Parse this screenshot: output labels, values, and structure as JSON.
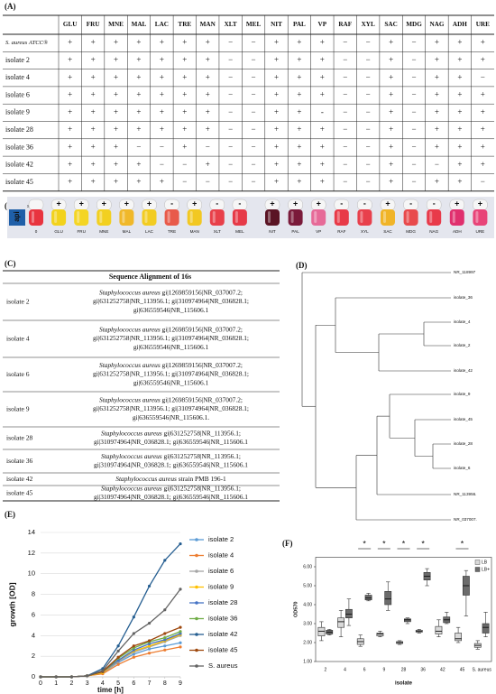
{
  "table_a": {
    "label": "(A)",
    "columns": [
      "GLU",
      "FRU",
      "MNE",
      "MAL",
      "LAC",
      "TRE",
      "MAN",
      "XLT",
      "MEL",
      "NIT",
      "PAL",
      "VP",
      "RAF",
      "XYL",
      "SAC",
      "MDG",
      "NAG",
      "ADH",
      "URE"
    ],
    "rows": [
      {
        "name": "S. aureus ATCC®",
        "cells": [
          "+",
          "+",
          "+",
          "+",
          "+",
          "+",
          "+",
          "−",
          "−",
          "+",
          "+",
          "+",
          "−",
          "−",
          "+",
          "−",
          "+",
          "+",
          "+"
        ]
      },
      {
        "name": "isolate 2",
        "cells": [
          "+",
          "+",
          "+",
          "+",
          "+",
          "+",
          "+",
          "−",
          "−",
          "+",
          "+",
          "+",
          "−",
          "−",
          "+",
          "−",
          "+",
          "+",
          "+"
        ]
      },
      {
        "name": "isolate 4",
        "cells": [
          "+",
          "+",
          "+",
          "+",
          "+",
          "+",
          "+",
          "−",
          "−",
          "+",
          "+",
          "+",
          "−",
          "−",
          "+",
          "−",
          "+",
          "+",
          "−"
        ]
      },
      {
        "name": "isolate 6",
        "cells": [
          "+",
          "+",
          "+",
          "+",
          "+",
          "+",
          "+",
          "−",
          "−",
          "+",
          "+",
          "+",
          "−",
          "−",
          "+",
          "−",
          "+",
          "+",
          "+"
        ]
      },
      {
        "name": "isolate 9",
        "cells": [
          "+",
          "+",
          "+",
          "+",
          "+",
          "+",
          "+",
          "−",
          "−",
          "+",
          "+",
          "-",
          "−",
          "−",
          "+",
          "−",
          "+",
          "+",
          "+"
        ]
      },
      {
        "name": "isolate 28",
        "cells": [
          "+",
          "+",
          "+",
          "+",
          "+",
          "+",
          "+",
          "−",
          "−",
          "+",
          "+",
          "+",
          "−",
          "−",
          "+",
          "−",
          "+",
          "+",
          "+"
        ]
      },
      {
        "name": "isolate 36",
        "cells": [
          "+",
          "+",
          "+",
          "−",
          "−",
          "+",
          "−",
          "−",
          "−",
          "+",
          "+",
          "+",
          "−",
          "−",
          "+",
          "−",
          "+",
          "+",
          "+"
        ]
      },
      {
        "name": "isolate 42",
        "cells": [
          "+",
          "+",
          "+",
          "+",
          "−",
          "−",
          "+",
          "−",
          "−",
          "+",
          "+",
          "+",
          "−",
          "−",
          "+",
          "−",
          "−",
          "+",
          "+"
        ]
      },
      {
        "name": "isolate 45",
        "cells": [
          "+",
          "+",
          "+",
          "+",
          "+",
          "−",
          "−",
          "−",
          "−",
          "+",
          "+",
          "+",
          "−",
          "−",
          "+",
          "−",
          "+",
          "+",
          "−"
        ]
      }
    ]
  },
  "strip": {
    "label": "(B)",
    "brand": "api",
    "brand2": "STAPH",
    "tubes": [
      {
        "label": "0",
        "color": "#e8343f"
      },
      {
        "label": "GLU",
        "sign": "+",
        "color": "#f2d21c"
      },
      {
        "label": "FRU",
        "sign": "+",
        "color": "#f4d524"
      },
      {
        "label": "MNE",
        "sign": "+",
        "color": "#f2d020"
      },
      {
        "label": "MAL",
        "sign": "+",
        "color": "#f0b82a"
      },
      {
        "label": "LAC",
        "sign": "+",
        "color": "#f2cc22"
      },
      {
        "label": "TRE",
        "sign": "-",
        "color": "#e85a4a"
      },
      {
        "label": "MAN",
        "sign": "+",
        "color": "#f2c822"
      },
      {
        "label": "XLT",
        "sign": "-",
        "color": "#e8404a"
      },
      {
        "label": "MEL",
        "sign": "-",
        "color": "#e63a48"
      },
      {
        "label": "NIT",
        "sign": "+",
        "color": "#5a1424"
      },
      {
        "label": "PAL",
        "sign": "+",
        "color": "#7a1a3a"
      },
      {
        "label": "VP",
        "sign": "+",
        "color": "#e66a98"
      },
      {
        "label": "RAF",
        "sign": "-",
        "color": "#e83a48"
      },
      {
        "label": "XYL",
        "sign": "-",
        "color": "#e8404c"
      },
      {
        "label": "SAC",
        "sign": "+",
        "color": "#f0b428"
      },
      {
        "label": "MDG",
        "sign": "-",
        "color": "#e84a4c"
      },
      {
        "label": "NAG",
        "sign": "-",
        "color": "#e83a4a"
      },
      {
        "label": "ADH",
        "sign": "+",
        "color": "#e0306e"
      },
      {
        "label": "URE",
        "sign": "+",
        "color": "#e84478"
      }
    ]
  },
  "alignment": {
    "label": "(C)",
    "title": "Sequence Alignment of 16s",
    "rows": [
      {
        "name": "isolate 2",
        "species": "Staphylococcus aureus",
        "lines": [
          " gi|1269859156|NR_037007.2;",
          "gi|631252758|NR_113956.1;   gi|310974964|NR_036828.1;",
          "gi|636559546|NR_115606.1"
        ]
      },
      {
        "name": "isolate 4",
        "species": "Staphylococcus aureus",
        "lines": [
          " gi|1269859156|NR_037007.2;",
          "gi|631252758|NR_113956.1;   gi|310974964|NR_036828.1;",
          "gi|636559546|NR_115606.1"
        ]
      },
      {
        "name": "isolate 6",
        "species": "Staphylococcus aureus",
        "lines": [
          " gi|1269859156|NR_037007.2;",
          "gi|631252758|NR_113956.1; gi|310974964|NR_036828.1;",
          "gi|636559546|NR_115606.1"
        ]
      },
      {
        "name": "isolate 9",
        "species": "Staphylococcus aureus",
        "lines": [
          " gi|1269859156|NR_037007.2;",
          "gi|631252758|NR_113956.1; gi|310974964|NR_036828.1;",
          "gi|636559546|NR_115606.1."
        ]
      },
      {
        "name": "isolate 28",
        "species": "Staphylococcus aureus",
        "lines": [
          " gi|631252758|NR_113956.1;",
          "gi|310974964|NR_036828.1; gi|636559546|NR_115606.1"
        ]
      },
      {
        "name": "isolate 36",
        "species": "Staphylococcus aureus",
        "lines": [
          " gi|631252758|NR_113956.1;",
          "gi|310974964|NR_036828.1; gi|636559546|NR_115606.1"
        ]
      },
      {
        "name": "isolate 42",
        "species": "Staphylococcus aureus",
        "lines": [
          " strain PMB 196-1"
        ]
      },
      {
        "name": "isolate 45",
        "species": "Staphylococcus aureus",
        "lines": [
          " gi|631252758|NR_113956.1;",
          "gi|310974964|NR_036828.1; gi|636559546|NR_115606.1"
        ]
      }
    ]
  },
  "dendrogram": {
    "label": "(D)",
    "leaves": [
      "NR_118997",
      "isolate_36",
      "isolate_4",
      "isolate_2",
      "isolate_42",
      "isolate_9",
      "isolate_45",
      "isolate_28",
      "isolate_6",
      "NR_113956.",
      "NR_037007."
    ]
  },
  "chart_data": [
    {
      "type": "line",
      "label": "(E)",
      "xlabel": "time [h]",
      "ylabel": "growth [OD]",
      "x": [
        0,
        1,
        2,
        3,
        4,
        5,
        6,
        7,
        8,
        9
      ],
      "xlim": [
        0,
        9
      ],
      "xticks": [
        0,
        1,
        2,
        3,
        4,
        5,
        6,
        7,
        8,
        9
      ],
      "ylim": [
        0,
        14
      ],
      "yticks": [
        0,
        2,
        4,
        6,
        8,
        10,
        12,
        14
      ],
      "grid": true,
      "series": [
        {
          "name": "isolate 2",
          "color": "#5b9bd5",
          "values": [
            0,
            0,
            0,
            0.1,
            0.4,
            1.4,
            2.2,
            2.7,
            3.0,
            3.3
          ]
        },
        {
          "name": "isolate 4",
          "color": "#ed7d31",
          "values": [
            0,
            0,
            0,
            0.1,
            0.3,
            1.2,
            1.9,
            2.3,
            2.6,
            2.9
          ]
        },
        {
          "name": "isolate 6",
          "color": "#a5a5a5",
          "values": [
            0,
            0,
            0,
            0.1,
            0.4,
            1.5,
            2.4,
            2.9,
            3.4,
            4.0
          ]
        },
        {
          "name": "isolate 9",
          "color": "#ffc000",
          "values": [
            0,
            0,
            0,
            0.1,
            0.4,
            1.6,
            2.5,
            3.0,
            3.5,
            4.1
          ]
        },
        {
          "name": "isolate 28",
          "color": "#4472c4",
          "values": [
            0,
            0,
            0,
            0.1,
            0.5,
            1.6,
            2.6,
            3.2,
            3.6,
            4.2
          ]
        },
        {
          "name": "isolate 36",
          "color": "#70ad47",
          "values": [
            0,
            0,
            0,
            0.1,
            0.5,
            1.8,
            2.8,
            3.4,
            3.8,
            4.4
          ]
        },
        {
          "name": "isolate 42",
          "color": "#255e91",
          "values": [
            0,
            0,
            0,
            0.1,
            0.8,
            3.0,
            5.8,
            8.8,
            11.3,
            12.9
          ]
        },
        {
          "name": "isolate 45",
          "color": "#9e480e",
          "values": [
            0,
            0,
            0,
            0.1,
            0.5,
            1.9,
            3.0,
            3.5,
            4.2,
            4.8
          ]
        },
        {
          "name": "S. aureus",
          "color": "#636363",
          "values": [
            0,
            0,
            0,
            0.1,
            0.6,
            2.5,
            4.2,
            5.2,
            6.5,
            8.5
          ]
        }
      ]
    },
    {
      "type": "box",
      "label": "(F)",
      "xlabel": "isolate",
      "ylabel": "OD570",
      "categories": [
        "2",
        "4",
        "6",
        "9",
        "28",
        "36",
        "42",
        "45",
        "S. aureus"
      ],
      "ylim": [
        1,
        6.5
      ],
      "yticks": [
        {
          "value": 1,
          "label": "1.00"
        },
        {
          "value": 2,
          "label": "2.00"
        },
        {
          "value": 3,
          "label": "3.00"
        },
        {
          "value": 4,
          "label": "4.00"
        },
        {
          "value": 5,
          "label": "5.00"
        },
        {
          "value": 6,
          "label": "6.00"
        }
      ],
      "series": [
        {
          "name": "LB",
          "color": "#d9d9d9",
          "values": [
            [
              2.1,
              2.35,
              2.6,
              2.8,
              3.1
            ],
            [
              2.3,
              2.8,
              3.1,
              3.3,
              3.7
            ],
            [
              1.8,
              1.9,
              2.05,
              2.2,
              2.4
            ],
            [
              2.3,
              2.35,
              2.45,
              2.5,
              2.6
            ],
            [
              1.9,
              1.95,
              2.0,
              2.05,
              2.1
            ],
            [
              2.5,
              2.55,
              2.6,
              2.65,
              2.7
            ],
            [
              2.3,
              2.45,
              2.6,
              2.85,
              3.2
            ],
            [
              2.0,
              2.1,
              2.2,
              2.5,
              2.8
            ],
            [
              1.65,
              1.75,
              1.85,
              1.95,
              2.1
            ]
          ]
        },
        {
          "name": "LB+",
          "color": "#6b6b6b",
          "values": [
            [
              2.4,
              2.45,
              2.55,
              2.65,
              2.7
            ],
            [
              2.9,
              3.3,
              3.5,
              3.75,
              4.3
            ],
            [
              4.2,
              4.25,
              4.35,
              4.5,
              4.6
            ],
            [
              3.7,
              4.0,
              4.3,
              4.7,
              5.2
            ],
            [
              3.0,
              3.1,
              3.2,
              3.25,
              3.3
            ],
            [
              5.0,
              5.3,
              5.5,
              5.7,
              5.9
            ],
            [
              3.0,
              3.05,
              3.2,
              3.35,
              3.6
            ],
            [
              3.4,
              4.5,
              5.0,
              5.5,
              5.8
            ],
            [
              2.3,
              2.5,
              2.8,
              3.0,
              3.6
            ]
          ]
        }
      ],
      "annotations": [
        {
          "text": "*",
          "category": "6"
        },
        {
          "text": "*",
          "category": "9"
        },
        {
          "text": "*",
          "category": "28"
        },
        {
          "text": "*",
          "category": "36"
        },
        {
          "text": "*",
          "category": "45"
        }
      ]
    }
  ]
}
